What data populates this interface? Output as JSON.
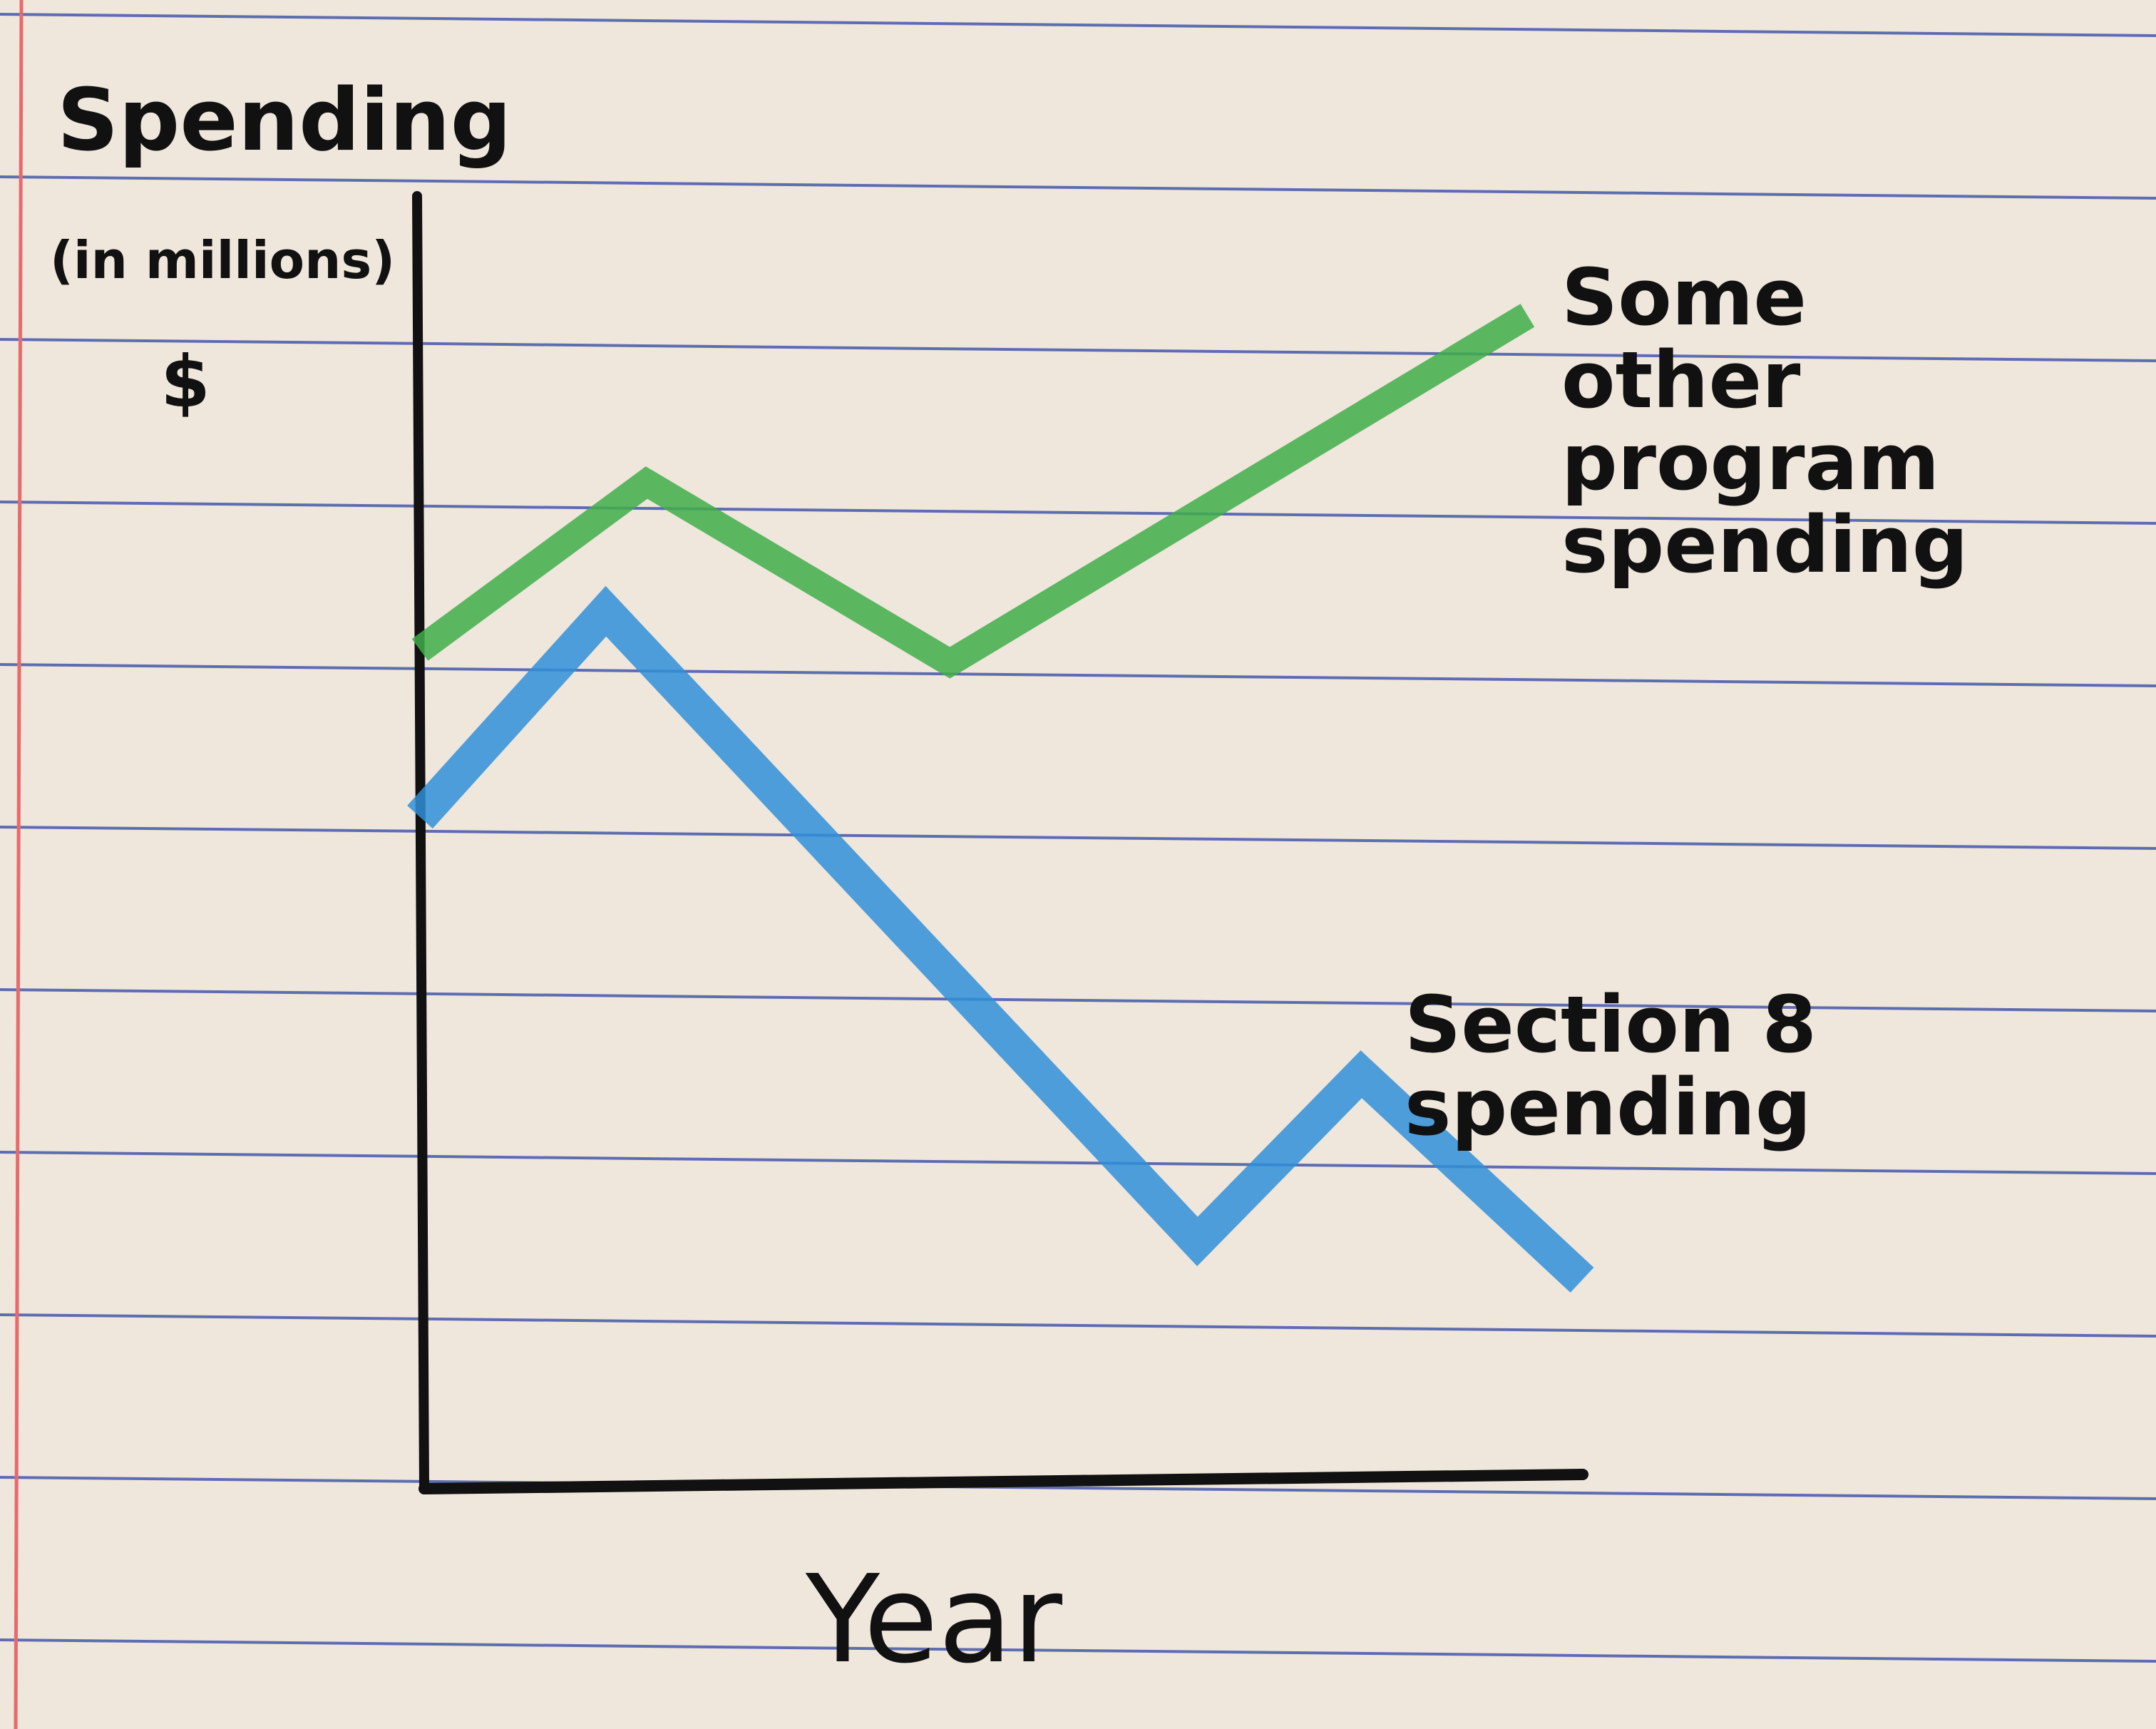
{
  "chart_data": {
    "type": "line",
    "y_label": "Spending",
    "y_label_unit": "(in millions)",
    "y_label_symbol": "$",
    "x_label": "Year",
    "xlim": [
      0,
      100
    ],
    "ylim": [
      0,
      100
    ],
    "series": [
      {
        "name": "Some other program spending",
        "color": "#3fae4a",
        "x": [
          0,
          19.5,
          45.6,
          95.3
        ],
        "values": [
          65,
          78,
          64,
          91
        ]
      },
      {
        "name": "Section 8 spending",
        "color": "#2f8fd8",
        "x": [
          0,
          16,
          66.9,
          81,
          100
        ],
        "values": [
          52,
          68,
          19,
          32,
          16
        ]
      }
    ]
  }
}
